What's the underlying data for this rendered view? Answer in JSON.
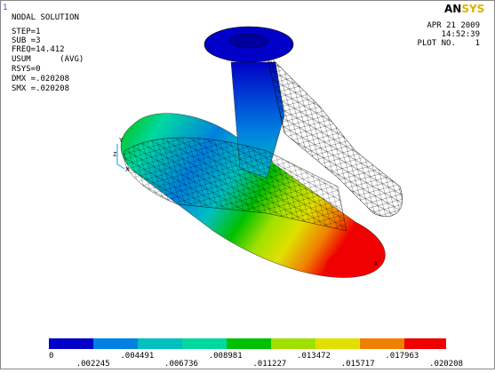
{
  "window_number": "1",
  "info_lines": [
    "NODAL SOLUTION",
    "STEP=1",
    "SUB =3",
    "FREQ=14.412",
    "USUM      (AVG)",
    "RSYS=0",
    "DMX =.020208",
    "SMX =.020208"
  ],
  "logo": [
    "AN",
    "SYS"
  ],
  "date": "APR 21 2009",
  "time": "14:52:39",
  "plot_no": "PLOT NO.    1",
  "triad": [
    "Y",
    "Z",
    "X"
  ],
  "node_marker": "X",
  "legend": {
    "labels": [
      "0",
      ".002245",
      ".004491",
      ".006736",
      ".008981",
      ".011227",
      ".013472",
      ".015717",
      ".017963",
      ".020208"
    ]
  }
}
